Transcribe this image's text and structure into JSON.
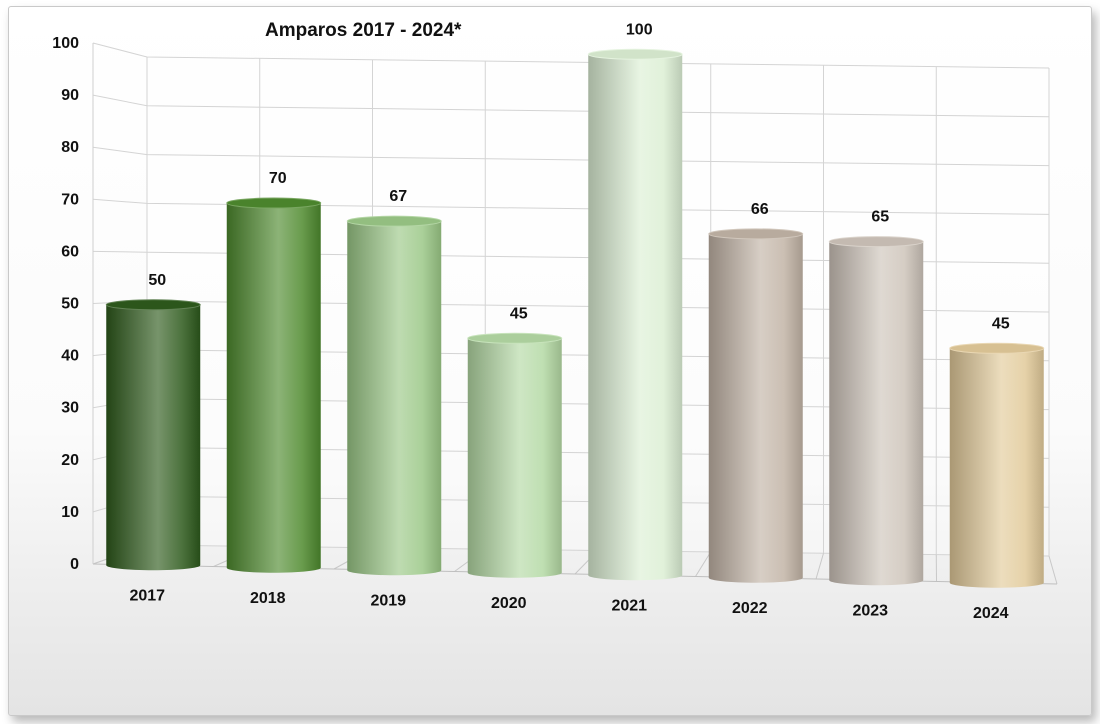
{
  "chart_data": {
    "type": "bar",
    "title": "Amparos 2017 - 2024*",
    "xlabel": "",
    "ylabel": "",
    "categories": [
      "2017",
      "2018",
      "2019",
      "2020",
      "2021",
      "2022",
      "2023",
      "2024"
    ],
    "series": [
      {
        "values": [
          50,
          70,
          67,
          45,
          100,
          66,
          65,
          45
        ]
      }
    ],
    "value_labels": [
      "50",
      "70",
      "67",
      "45",
      "100",
      "66",
      "65",
      "45"
    ],
    "ylim": [
      0,
      100
    ],
    "yticks": [
      "0",
      "10",
      "20",
      "30",
      "40",
      "50",
      "60",
      "70",
      "80",
      "90",
      "100"
    ],
    "grid": true,
    "legend": "none",
    "style": "3d-cylinder",
    "bar_colors": [
      "#2e5a1c",
      "#4e8a2e",
      "#9bc887",
      "#b4d9a4",
      "#dcefd4",
      "#c2b4a6",
      "#cec4ba",
      "#e2ca9a"
    ]
  }
}
